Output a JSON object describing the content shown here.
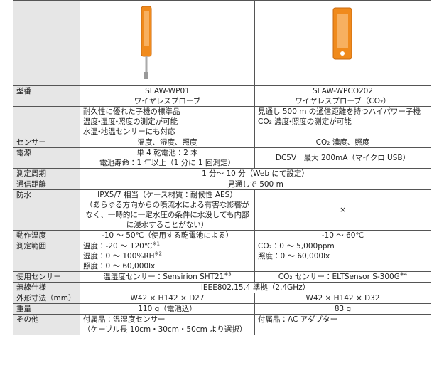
{
  "table": {
    "rows": [
      {
        "label": "型番",
        "cells": [
          [
            "SLAW-WP01",
            "ワイヤレスプローブ"
          ],
          [
            "SLAW-WPCO202",
            "ワイヤレスプローブ（CO₂）"
          ]
        ]
      },
      {
        "cells": [
          [
            "耐久性に優れた子機の標準品",
            "温度・湿度・照度の測定が可能",
            "水温・地温センサーにも対応"
          ],
          [
            "見通し 500 m の通信距離を持つハイパワー子機",
            "CO₂ 濃度・照度の測定が可能"
          ]
        ]
      },
      {
        "label": "センサー",
        "cells": [
          [
            "温度、湿度、照度"
          ],
          [
            "CO₂ 濃度、照度"
          ]
        ]
      },
      {
        "label": "電源",
        "cells": [
          [
            "単 4 乾電池：2 本",
            "電池寿命：1 年以上（1 分に 1 回測定）"
          ],
          [
            "DC5V　最大 200mA（マイクロ USB）"
          ]
        ]
      },
      {
        "label": "測定周期",
        "cells": [
          [
            "1 分～ 10 分（Web にて設定）"
          ]
        ]
      },
      {
        "label": "通信距離",
        "cells": [
          [
            "見通しで 500 m"
          ]
        ]
      },
      {
        "label": "防水",
        "cells": [
          [
            "IPX5/7 相当（ケース材質：耐候性 AES）",
            "（あらゆる方向からの噴流水による有害な影響がなく、一時的に一定水圧の条件に水没しても内部に浸水することがない）"
          ],
          [
            "×"
          ]
        ]
      },
      {
        "label": "動作温度",
        "cells": [
          [
            "-10 ～ 50℃（使用する乾電池による）"
          ],
          [
            "-10 ～ 60℃"
          ]
        ]
      },
      {
        "label": "測定範囲",
        "cells": [
          [
            {
              "text": "温度：-20 ～ 120℃",
              "note": "※1"
            },
            {
              "text": "湿度：0 ～ 100%RH",
              "note": "※2"
            },
            "照度：0 ～ 60,000lx"
          ],
          [
            "CO₂：0 ～ 5,000ppm",
            "照度：0 ～ 60,000lx"
          ]
        ]
      },
      {
        "label": "使用センサー",
        "cells": [
          [
            {
              "text": "温湿度センサー：Sensirion SHT21",
              "note": "※3"
            }
          ],
          [
            {
              "text": "CO₂ センサー：ELTSensor S-300G",
              "note": "※4"
            }
          ]
        ]
      },
      {
        "label": "無線仕様",
        "cells": [
          [
            "IEEE802.15.4 準拠（2.4GHz）"
          ]
        ]
      },
      {
        "label": "外形寸法（mm）",
        "cells": [
          [
            "W42 × H142 × D27"
          ],
          [
            "W42 × H142 × D32"
          ]
        ]
      },
      {
        "label": "重量",
        "cells": [
          [
            "110 g（電池込）"
          ],
          [
            "83 g"
          ]
        ]
      },
      {
        "label": "その他",
        "cells": [
          [
            "付属品：温湿度センサー",
            "（ケーブル長 10cm・30cm・50cm より選択）"
          ],
          [
            "付属品：AC アダプター"
          ]
        ]
      }
    ]
  }
}
